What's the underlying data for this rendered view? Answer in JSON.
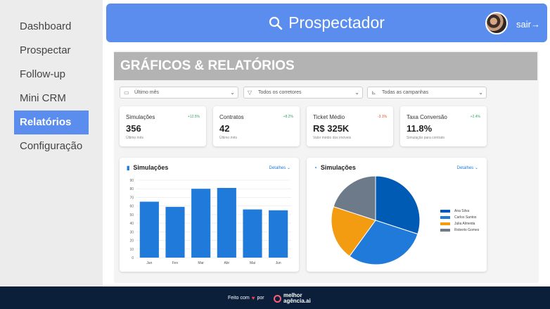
{
  "sidebar": {
    "items": [
      {
        "label": "Dashboard",
        "active": false
      },
      {
        "label": "Prospectar",
        "active": false
      },
      {
        "label": "Follow-up",
        "active": false
      },
      {
        "label": "Mini CRM",
        "active": false
      },
      {
        "label": "Relatórios",
        "active": true
      },
      {
        "label": "Configuração",
        "active": false
      }
    ]
  },
  "header": {
    "brand": "Prospectador",
    "logout": "sair→",
    "icon": "search-icon"
  },
  "page": {
    "title": "GRÁFICOS & RELATÓRIOS"
  },
  "filters": [
    {
      "icon": "calendar-icon",
      "value": "Último mês"
    },
    {
      "icon": "filter-icon",
      "value": "Todos os corretores"
    },
    {
      "icon": "chart-icon",
      "value": "Todas as campanhas"
    }
  ],
  "kpis": [
    {
      "label": "Simulações",
      "value": "356",
      "change": "+12.5%",
      "sub": "Último mês",
      "change_color": "#2eaa5c"
    },
    {
      "label": "Contratos",
      "value": "42",
      "change": "+8.2%",
      "sub": "Último mês",
      "change_color": "#2eaa5c"
    },
    {
      "label": "Ticket Médio",
      "value": "R$ 325K",
      "change": "-3.1%",
      "sub": "Valor médio dos imóveis",
      "change_color": "#e0492e"
    },
    {
      "label": "Taxa Conversão",
      "value": "11.8%",
      "change": "+2.4%",
      "sub": "Simulação para contrato",
      "change_color": "#2eaa5c"
    }
  ],
  "cards": {
    "bar": {
      "title": "Simulações",
      "detail": "Detalhes ⌄"
    },
    "pie": {
      "title": "Simulações",
      "detail": "Detalhes ⌄"
    }
  },
  "footer": {
    "made_with": "Feito com",
    "by": "por",
    "logo_line1": "melhor",
    "logo_line2": "agência.ai"
  },
  "colors": {
    "accent": "#5b8def",
    "bar": "#1f7ad9",
    "footer": "#0b1f3a"
  },
  "chart_data": [
    {
      "type": "bar",
      "title": "Simulações",
      "categories": [
        "Jan",
        "Fev",
        "Mar",
        "Abr",
        "Mai",
        "Jun"
      ],
      "values": [
        65,
        59,
        80,
        81,
        56,
        55
      ],
      "ylim": [
        0,
        90
      ],
      "yticks": [
        0,
        10,
        20,
        30,
        40,
        50,
        60,
        70,
        80,
        90
      ],
      "grid": true
    },
    {
      "type": "pie",
      "title": "Simulações",
      "series": [
        {
          "name": "Ana Silva",
          "value": 30,
          "color": "#005bb5"
        },
        {
          "name": "Carlos Santos",
          "value": 30,
          "color": "#1f7ad9"
        },
        {
          "name": "Julia Almeida",
          "value": 20,
          "color": "#f39c12"
        },
        {
          "name": "Roberto Gomes",
          "value": 20,
          "color": "#6c7a89"
        }
      ],
      "legend": "right"
    }
  ]
}
